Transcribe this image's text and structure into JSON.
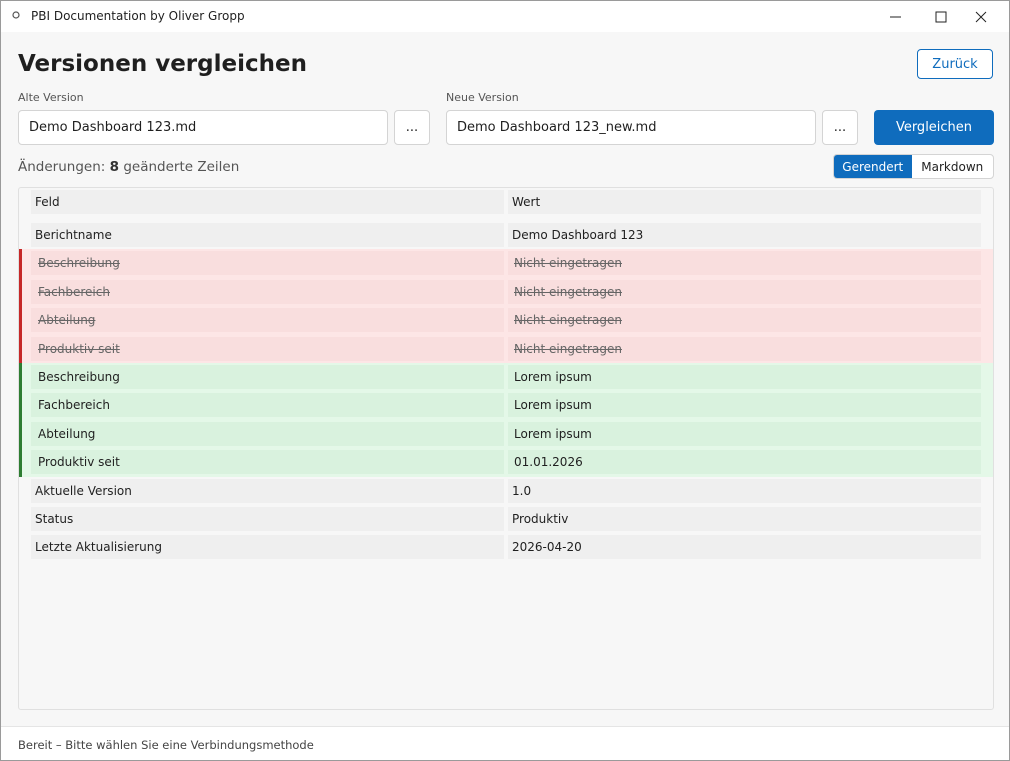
{
  "window": {
    "title": "PBI Documentation by Oliver Gropp"
  },
  "header": {
    "title": "Versionen vergleichen",
    "back_button": "Zurück"
  },
  "old_version": {
    "label": "Alte Version",
    "file": "Demo Dashboard 123.md",
    "browse": "..."
  },
  "new_version": {
    "label": "Neue Version",
    "file": "Demo Dashboard 123_new.md",
    "browse": "..."
  },
  "compare_button": "Vergleichen",
  "summary": {
    "prefix": "Änderungen:",
    "count": "8",
    "suffix": "geänderte Zeilen"
  },
  "view_toggle": {
    "options": [
      "Gerendert",
      "Markdown"
    ],
    "selected": 0
  },
  "table": {
    "columns": [
      "Feld",
      "Wert"
    ],
    "rows": [
      {
        "field": "Berichtname",
        "value": "Demo Dashboard 123",
        "status": "unchanged"
      },
      {
        "field": "Beschreibung",
        "value": "Nicht eingetragen",
        "status": "removed"
      },
      {
        "field": "Fachbereich",
        "value": "Nicht eingetragen",
        "status": "removed"
      },
      {
        "field": "Abteilung",
        "value": "Nicht eingetragen",
        "status": "removed"
      },
      {
        "field": "Produktiv seit",
        "value": "Nicht eingetragen",
        "status": "removed"
      },
      {
        "field": "Beschreibung",
        "value": "Lorem ipsum",
        "status": "added"
      },
      {
        "field": "Fachbereich",
        "value": "Lorem ipsum",
        "status": "added"
      },
      {
        "field": "Abteilung",
        "value": "Lorem ipsum",
        "status": "added"
      },
      {
        "field": "Produktiv seit",
        "value": "01.01.2026",
        "status": "added"
      },
      {
        "field": "Aktuelle Version",
        "value": "1.0",
        "status": "unchanged"
      },
      {
        "field": "Status",
        "value": "Produktiv",
        "status": "unchanged"
      },
      {
        "field": "Letzte Aktualisierung",
        "value": "2026-04-20",
        "status": "unchanged"
      }
    ]
  },
  "status_bar": "Bereit – Bitte wählen Sie eine Verbindungsmethode"
}
